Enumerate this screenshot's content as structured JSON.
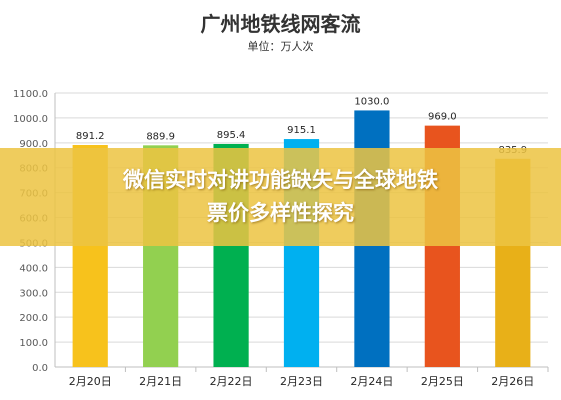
{
  "chart_data": {
    "type": "bar",
    "title": "广州地铁线网客流",
    "subtitle": "单位：万人次",
    "categories": [
      "2月20日",
      "2月21日",
      "2月22日",
      "2月23日",
      "2月24日",
      "2月25日",
      "2月26日"
    ],
    "values": [
      891.2,
      889.9,
      895.4,
      915.1,
      1030.0,
      969.0,
      835.9
    ],
    "value_labels": [
      "891.2",
      "889.9",
      "895.4",
      "915.1",
      "1030.0",
      "969.0",
      "835.9"
    ],
    "bar_colors": [
      "#f7c21c",
      "#92d050",
      "#00b050",
      "#00b0f0",
      "#0070c0",
      "#e8541e",
      "#e8b018"
    ],
    "ylim": [
      0,
      1100
    ],
    "yticks": [
      0,
      100,
      200,
      300,
      400,
      500,
      600,
      700,
      800,
      900,
      1000,
      1100
    ],
    "ytick_labels": [
      "0.0",
      "100.0",
      "200.0",
      "300.0",
      "400.0",
      "500.0",
      "600.0",
      "700.0",
      "800.0",
      "900.0",
      "1000.0",
      "1100.0"
    ],
    "grid": true,
    "xlabel": "",
    "ylabel": ""
  },
  "banner": {
    "line1": "微信实时对讲功能缺失与全球地铁",
    "line2": "票价多样性探究",
    "color": "#ecc442"
  }
}
